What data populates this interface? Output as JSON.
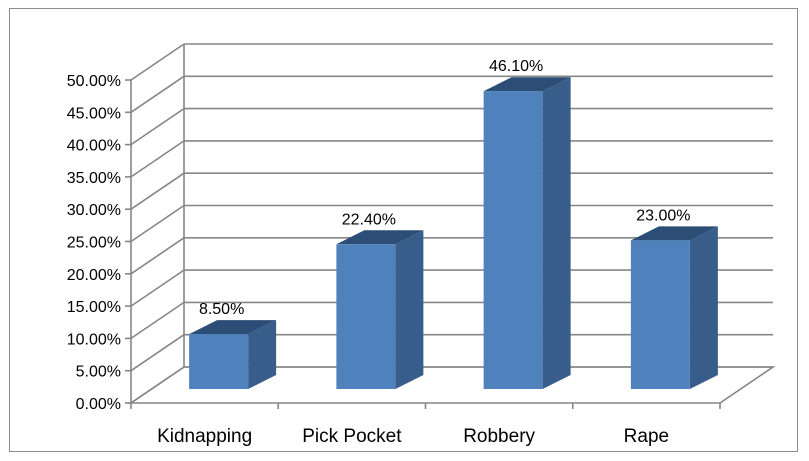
{
  "chart_data": {
    "type": "bar",
    "categories": [
      "Kidnapping",
      "Pick Pocket",
      "Robbery",
      "Rape"
    ],
    "values": [
      8.5,
      22.4,
      46.1,
      23.0
    ],
    "data_labels": [
      "8.50%",
      "22.40%",
      "46.10%",
      "23.00%"
    ],
    "ylim": [
      0,
      50
    ],
    "yticks": [
      0,
      5,
      10,
      15,
      20,
      25,
      30,
      35,
      40,
      45,
      50
    ],
    "ytick_labels": [
      "0.00%",
      "5.00%",
      "10.00%",
      "15.00%",
      "20.00%",
      "25.00%",
      "30.00%",
      "35.00%",
      "40.00%",
      "45.00%",
      "50.00%"
    ],
    "title": "",
    "xlabel": "",
    "ylabel": "",
    "grid": true,
    "legend": "none",
    "style": "3d-column",
    "colors": {
      "bar_front": "#4f81bd",
      "bar_side": "#385d8a",
      "bar_top": "#2c4d75",
      "gridline": "#868686",
      "axis": "#868686"
    }
  }
}
